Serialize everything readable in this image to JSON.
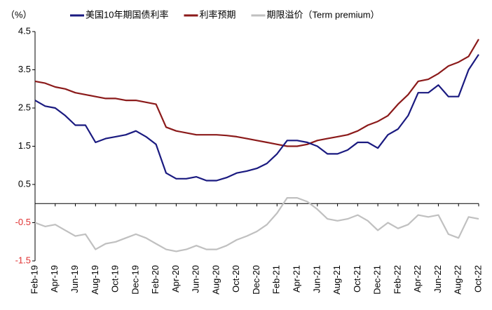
{
  "chart_data": {
    "type": "line",
    "unit_label": "（%）",
    "categories": [
      "Feb-19",
      null,
      "Apr-19",
      null,
      "Jun-19",
      null,
      "Aug-19",
      null,
      "Oct-19",
      null,
      "Dec-19",
      null,
      "Feb-20",
      null,
      "Apr-20",
      null,
      "Jun-20",
      null,
      "Aug-20",
      null,
      "Oct-20",
      null,
      "Dec-20",
      null,
      "Feb-21",
      null,
      "Apr-21",
      null,
      "Jun-21",
      null,
      "Aug-21",
      null,
      "Oct-21",
      null,
      "Dec-21",
      null,
      "Feb-22",
      null,
      "Apr-22",
      null,
      "Jun-22",
      null,
      "Aug-22",
      null,
      "Oct-22"
    ],
    "series": [
      {
        "name": "美国10年期国债利率",
        "color": "#1a1a80",
        "values": [
          2.7,
          2.55,
          2.5,
          2.3,
          2.05,
          2.05,
          1.6,
          1.7,
          1.75,
          1.8,
          1.9,
          1.75,
          1.55,
          0.8,
          0.65,
          0.65,
          0.7,
          0.6,
          0.6,
          0.68,
          0.8,
          0.85,
          0.92,
          1.05,
          1.3,
          1.65,
          1.65,
          1.6,
          1.5,
          1.3,
          1.3,
          1.4,
          1.6,
          1.6,
          1.45,
          1.8,
          1.95,
          2.3,
          2.9,
          2.9,
          3.1,
          2.8,
          2.8,
          3.5,
          3.9
        ]
      },
      {
        "name": "利率预期",
        "color": "#8b1a1a",
        "values": [
          3.2,
          3.15,
          3.05,
          3.0,
          2.9,
          2.85,
          2.8,
          2.75,
          2.75,
          2.7,
          2.7,
          2.65,
          2.6,
          2.0,
          1.9,
          1.85,
          1.8,
          1.8,
          1.8,
          1.78,
          1.75,
          1.7,
          1.65,
          1.6,
          1.55,
          1.5,
          1.5,
          1.55,
          1.65,
          1.7,
          1.75,
          1.8,
          1.9,
          2.05,
          2.15,
          2.3,
          2.6,
          2.85,
          3.2,
          3.25,
          3.4,
          3.6,
          3.7,
          3.85,
          4.3
        ]
      },
      {
        "name": "期限溢价（Term premium）",
        "color": "#c0c0c0",
        "values": [
          -0.5,
          -0.6,
          -0.55,
          -0.7,
          -0.85,
          -0.8,
          -1.2,
          -1.05,
          -1.0,
          -0.9,
          -0.8,
          -0.9,
          -1.05,
          -1.2,
          -1.25,
          -1.2,
          -1.1,
          -1.2,
          -1.2,
          -1.1,
          -0.95,
          -0.85,
          -0.73,
          -0.55,
          -0.25,
          0.15,
          0.15,
          0.05,
          -0.15,
          -0.4,
          -0.45,
          -0.4,
          -0.3,
          -0.45,
          -0.7,
          -0.5,
          -0.65,
          -0.55,
          -0.3,
          -0.35,
          -0.3,
          -0.8,
          -0.9,
          -0.35,
          -0.4
        ]
      }
    ],
    "ylim": [
      -1.5,
      4.5
    ],
    "yticks": [
      4.5,
      3.5,
      2.5,
      1.5,
      0.5,
      -0.5,
      -1.5
    ],
    "negative_tick_color": "#e03030",
    "legend": "top"
  }
}
